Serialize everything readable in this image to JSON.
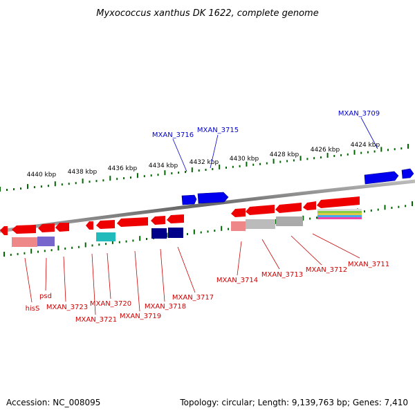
{
  "title": "Myxococcus xanthus DK 1622, complete genome",
  "footer": {
    "accession": "Accession: NC_008095",
    "topology": "Topology: circular; Length: 9,139,763 bp; Genes: 7,410"
  },
  "colors": {
    "forward_strand": "#0000ee",
    "reverse_strand": "#ee0000",
    "ruler_ticks": "#006600",
    "backbone": "#888888"
  },
  "ruler_labels": [
    "4440 kbp",
    "4438 kbp",
    "4436 kbp",
    "4434 kbp",
    "4432 kbp",
    "4430 kbp",
    "4428 kbp",
    "4426 kbp",
    "4424 kbp"
  ],
  "genes_forward": [
    "MXAN_3716",
    "MXAN_3715",
    "MXAN_3709"
  ],
  "genes_reverse": [
    "hisS",
    "psd",
    "MXAN_3723",
    "MXAN_3721",
    "MXAN_3720",
    "MXAN_3719",
    "MXAN_3718",
    "MXAN_3717",
    "MXAN_3714",
    "MXAN_3713",
    "MXAN_3712",
    "MXAN_3711"
  ]
}
